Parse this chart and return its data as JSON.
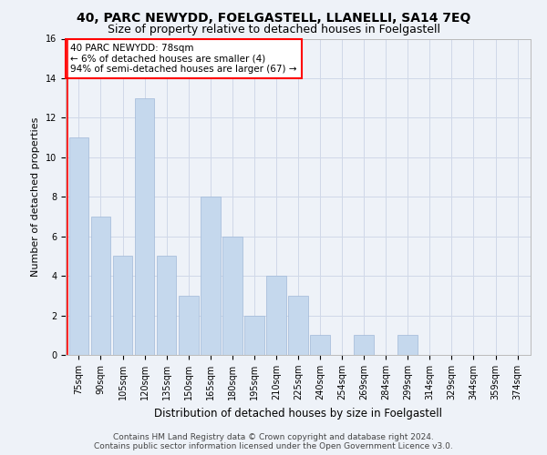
{
  "title": "40, PARC NEWYDD, FOELGASTELL, LLANELLI, SA14 7EQ",
  "subtitle": "Size of property relative to detached houses in Foelgastell",
  "xlabel": "Distribution of detached houses by size in Foelgastell",
  "ylabel": "Number of detached properties",
  "categories": [
    "75sqm",
    "90sqm",
    "105sqm",
    "120sqm",
    "135sqm",
    "150sqm",
    "165sqm",
    "180sqm",
    "195sqm",
    "210sqm",
    "225sqm",
    "240sqm",
    "254sqm",
    "269sqm",
    "284sqm",
    "299sqm",
    "314sqm",
    "329sqm",
    "344sqm",
    "359sqm",
    "374sqm"
  ],
  "values": [
    11,
    7,
    5,
    13,
    5,
    3,
    8,
    6,
    2,
    4,
    3,
    1,
    0,
    1,
    0,
    1,
    0,
    0,
    0,
    0,
    0
  ],
  "bar_color": "#c5d8ed",
  "bar_edge_color": "#a0b8d8",
  "annotation_box_text": "40 PARC NEWYDD: 78sqm\n← 6% of detached houses are smaller (4)\n94% of semi-detached houses are larger (67) →",
  "annotation_box_color": "red",
  "annotation_box_fill": "white",
  "ylim": [
    0,
    16
  ],
  "yticks": [
    0,
    2,
    4,
    6,
    8,
    10,
    12,
    14,
    16
  ],
  "grid_color": "#d0d8e8",
  "background_color": "#eef2f8",
  "footer_line1": "Contains HM Land Registry data © Crown copyright and database right 2024.",
  "footer_line2": "Contains public sector information licensed under the Open Government Licence v3.0.",
  "title_fontsize": 10,
  "subtitle_fontsize": 9,
  "xlabel_fontsize": 8.5,
  "ylabel_fontsize": 8,
  "tick_fontsize": 7,
  "annotation_fontsize": 7.5,
  "footer_fontsize": 6.5
}
